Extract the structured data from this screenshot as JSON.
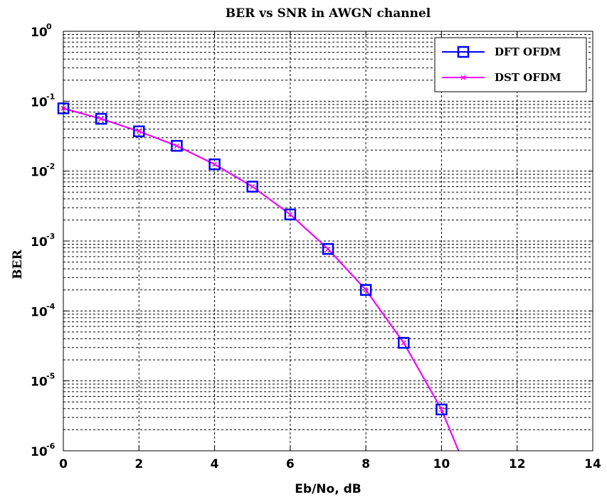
{
  "chart_data": {
    "type": "line",
    "title": "BER vs SNR in AWGN channel",
    "xlabel": "Eb/No, dB",
    "ylabel": "BER",
    "xlim": [
      0,
      14
    ],
    "ylim": [
      1e-06,
      1
    ],
    "yscale": "log",
    "grid": true,
    "legend_position": "top-right",
    "x_ticks": [
      "0",
      "2",
      "4",
      "6",
      "8",
      "10",
      "12",
      "14"
    ],
    "y_ticks": [
      {
        "base": "10",
        "exp": "0",
        "value": 1
      },
      {
        "base": "10",
        "exp": "-1",
        "value": 0.1
      },
      {
        "base": "10",
        "exp": "-2",
        "value": 0.01
      },
      {
        "base": "10",
        "exp": "-3",
        "value": 0.001
      },
      {
        "base": "10",
        "exp": "-4",
        "value": 0.0001
      },
      {
        "base": "10",
        "exp": "-5",
        "value": 1e-05
      },
      {
        "base": "10",
        "exp": "-6",
        "value": 1e-06
      }
    ],
    "series": [
      {
        "name": "DFT OFDM",
        "color": "#0000ff",
        "marker": "square",
        "x": [
          0,
          1,
          2,
          3,
          4,
          5,
          6,
          7,
          8,
          9,
          10,
          10.45
        ],
        "y": [
          0.079,
          0.056,
          0.037,
          0.023,
          0.0125,
          0.006,
          0.0024,
          0.00077,
          0.0002,
          3.5e-05,
          3.9e-06,
          1e-06
        ]
      },
      {
        "name": "DST OFDM",
        "color": "#ff00ff",
        "marker": "x",
        "x": [
          0,
          1,
          2,
          3,
          4,
          5,
          6,
          7,
          8,
          9,
          10,
          10.45
        ],
        "y": [
          0.079,
          0.056,
          0.037,
          0.023,
          0.0125,
          0.006,
          0.0024,
          0.00077,
          0.0002,
          3.5e-05,
          3.9e-06,
          1e-06
        ]
      }
    ]
  }
}
